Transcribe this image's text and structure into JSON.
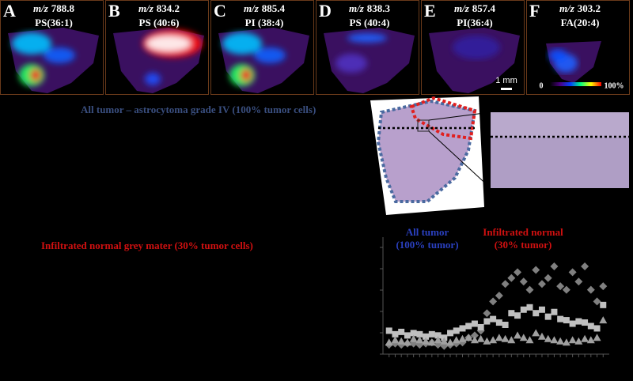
{
  "panels": [
    {
      "letter": "A",
      "mz_prefix": "m/z",
      "mz": "788.8",
      "lipid": "PS(36:1)"
    },
    {
      "letter": "B",
      "mz_prefix": "m/z",
      "mz": "834.2",
      "lipid": "PS (40:6)"
    },
    {
      "letter": "C",
      "mz_prefix": "m/z",
      "mz": "885.4",
      "lipid": "PI (38:4)"
    },
    {
      "letter": "D",
      "mz_prefix": "m/z",
      "mz": "838.3",
      "lipid": "PS (40:4)"
    },
    {
      "letter": "E",
      "mz_prefix": "m/z",
      "mz": "857.4",
      "lipid": "PI(36:4)"
    },
    {
      "letter": "F",
      "mz_prefix": "m/z",
      "mz": "303.2",
      "lipid": "FA(20:4)"
    }
  ],
  "scale_bar": "1 mm",
  "colorbar": {
    "min_label": "0",
    "max_label": "100%"
  },
  "annotations": {
    "all_tumor": "All tumor – astrocytoma grade IV (100% tumor cells)",
    "infiltrated": "Infiltrated normal grey mater (30% tumor cells)"
  },
  "chart_data": {
    "type": "scatter",
    "labels": {
      "all_tumor": [
        "All tumor",
        "(100% tumor)"
      ],
      "infiltrated": [
        "Infiltrated normal",
        "(30% tumor)"
      ]
    },
    "x": [
      1,
      2,
      3,
      4,
      5,
      6,
      7,
      8,
      9,
      10,
      11,
      12,
      13,
      14,
      15,
      16,
      17,
      18,
      19,
      20,
      21,
      22,
      23,
      24,
      25,
      26,
      27,
      28,
      29,
      30,
      31,
      32,
      33,
      34,
      35,
      36
    ],
    "xlim": [
      0,
      37
    ],
    "ylim": [
      0,
      100
    ],
    "series": [
      {
        "marker": "diamond",
        "color": "#808080",
        "values": [
          8,
          9,
          8,
          9,
          9,
          8,
          9,
          10,
          8,
          7,
          8,
          9,
          10,
          14,
          16,
          20,
          35,
          45,
          50,
          60,
          65,
          70,
          62,
          55,
          72,
          60,
          65,
          75,
          58,
          55,
          70,
          62,
          75,
          55,
          45,
          58
        ]
      },
      {
        "marker": "square",
        "color": "#c0c0c0",
        "values": [
          20,
          17,
          19,
          16,
          18,
          17,
          15,
          17,
          16,
          14,
          18,
          20,
          22,
          24,
          26,
          23,
          28,
          30,
          27,
          25,
          35,
          33,
          38,
          40,
          35,
          38,
          32,
          36,
          30,
          29,
          26,
          28,
          27,
          24,
          22,
          42
        ]
      },
      {
        "marker": "triangle",
        "color": "#a0a0a0",
        "values": [
          10,
          12,
          11,
          10,
          13,
          12,
          11,
          10,
          12,
          11,
          10,
          12,
          13,
          14,
          12,
          13,
          11,
          12,
          14,
          13,
          12,
          16,
          14,
          12,
          18,
          15,
          13,
          12,
          11,
          10,
          12,
          11,
          13,
          12,
          14,
          29
        ]
      }
    ]
  }
}
